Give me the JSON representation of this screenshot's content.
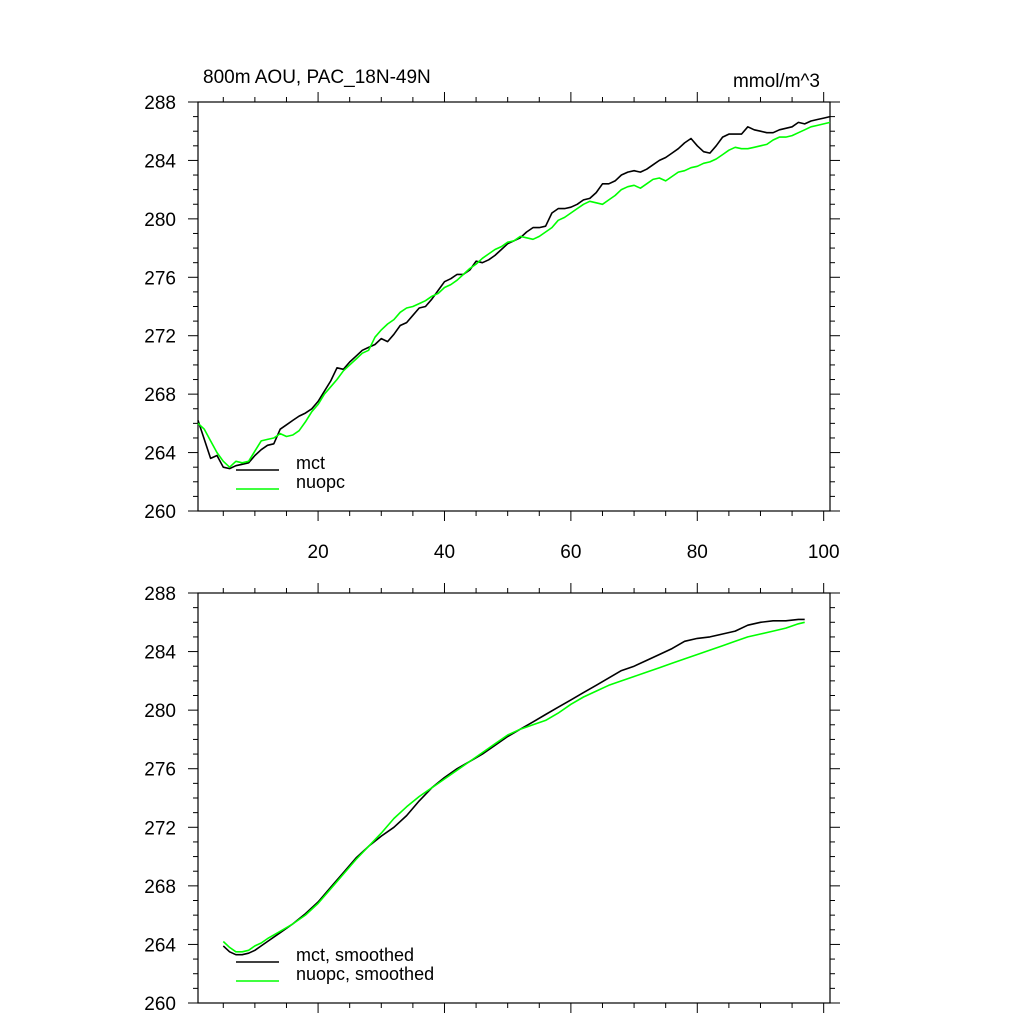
{
  "chart_data": [
    {
      "type": "line",
      "title": "800m AOU, PAC_18N-49N",
      "title_right": "mmol/m^3",
      "xlim": [
        1,
        101
      ],
      "ylim": [
        260,
        288
      ],
      "xticks": [
        20,
        40,
        60,
        80,
        100
      ],
      "yticks": [
        260,
        264,
        268,
        272,
        276,
        280,
        284,
        288
      ],
      "legend_position": "bottom-left",
      "series": [
        {
          "name": "mct",
          "color": "#000000",
          "x": [
            1,
            2,
            3,
            4,
            5,
            6,
            7,
            8,
            9,
            10,
            11,
            12,
            13,
            14,
            15,
            16,
            17,
            18,
            19,
            20,
            21,
            22,
            23,
            24,
            25,
            26,
            27,
            28,
            29,
            30,
            31,
            32,
            33,
            34,
            35,
            36,
            37,
            38,
            39,
            40,
            41,
            42,
            43,
            44,
            45,
            46,
            47,
            48,
            49,
            50,
            51,
            52,
            53,
            54,
            55,
            56,
            57,
            58,
            59,
            60,
            61,
            62,
            63,
            64,
            65,
            66,
            67,
            68,
            69,
            70,
            71,
            72,
            73,
            74,
            75,
            76,
            77,
            78,
            79,
            80,
            81,
            82,
            83,
            84,
            85,
            86,
            87,
            88,
            89,
            90,
            91,
            92,
            93,
            94,
            95,
            96,
            97,
            98,
            99,
            100,
            101
          ],
          "values": [
            266.2,
            264.9,
            263.6,
            263.8,
            263.0,
            262.9,
            263.1,
            263.2,
            263.3,
            263.8,
            264.2,
            264.5,
            264.6,
            265.6,
            265.9,
            266.2,
            266.5,
            266.7,
            267.0,
            267.5,
            268.2,
            268.9,
            269.8,
            269.7,
            270.2,
            270.6,
            271.0,
            271.2,
            271.4,
            271.8,
            271.6,
            272.1,
            272.7,
            272.9,
            273.4,
            273.9,
            274.0,
            274.5,
            275.1,
            275.7,
            275.9,
            276.2,
            276.2,
            276.5,
            277.1,
            277.0,
            277.2,
            277.5,
            277.9,
            278.3,
            278.5,
            278.7,
            279.1,
            279.4,
            279.4,
            279.5,
            280.4,
            280.7,
            280.7,
            280.8,
            281.0,
            281.3,
            281.4,
            281.8,
            282.4,
            282.4,
            282.6,
            283.0,
            283.2,
            283.3,
            283.2,
            283.4,
            283.7,
            284.0,
            284.2,
            284.5,
            284.8,
            285.2,
            285.5,
            285.0,
            284.6,
            284.5,
            285.0,
            285.6,
            285.8,
            285.8,
            285.8,
            286.3,
            286.1,
            286.0,
            285.9,
            285.9,
            286.1,
            286.2,
            286.3,
            286.6,
            286.5,
            286.7,
            286.8,
            286.9,
            287.0
          ]
        },
        {
          "name": "nuopc",
          "color": "#00ff00",
          "x": [
            1,
            2,
            3,
            4,
            5,
            6,
            7,
            8,
            9,
            10,
            11,
            12,
            13,
            14,
            15,
            16,
            17,
            18,
            19,
            20,
            21,
            22,
            23,
            24,
            25,
            26,
            27,
            28,
            29,
            30,
            31,
            32,
            33,
            34,
            35,
            36,
            37,
            38,
            39,
            40,
            41,
            42,
            43,
            44,
            45,
            46,
            47,
            48,
            49,
            50,
            51,
            52,
            53,
            54,
            55,
            56,
            57,
            58,
            59,
            60,
            61,
            62,
            63,
            64,
            65,
            66,
            67,
            68,
            69,
            70,
            71,
            72,
            73,
            74,
            75,
            76,
            77,
            78,
            79,
            80,
            81,
            82,
            83,
            84,
            85,
            86,
            87,
            88,
            89,
            90,
            91,
            92,
            93,
            94,
            95,
            96,
            97,
            98,
            99,
            100,
            101
          ],
          "values": [
            266.0,
            265.6,
            264.8,
            264.0,
            263.4,
            263.0,
            263.4,
            263.3,
            263.4,
            264.1,
            264.8,
            264.9,
            265.0,
            265.3,
            265.1,
            265.2,
            265.5,
            266.1,
            266.8,
            267.3,
            268.0,
            268.5,
            269.0,
            269.6,
            270.0,
            270.4,
            270.8,
            271.0,
            271.9,
            272.4,
            272.8,
            273.1,
            273.6,
            273.9,
            274.0,
            274.2,
            274.4,
            274.7,
            274.9,
            275.3,
            275.5,
            275.8,
            276.2,
            276.6,
            276.9,
            277.3,
            277.6,
            277.9,
            278.1,
            278.4,
            278.5,
            278.8,
            278.7,
            278.6,
            278.8,
            279.1,
            279.4,
            279.9,
            280.1,
            280.4,
            280.7,
            281.0,
            281.2,
            281.1,
            281.0,
            281.3,
            281.6,
            282.0,
            282.2,
            282.3,
            282.1,
            282.4,
            282.7,
            282.8,
            282.6,
            282.9,
            283.2,
            283.3,
            283.5,
            283.6,
            283.8,
            283.9,
            284.1,
            284.4,
            284.7,
            284.9,
            284.8,
            284.8,
            284.9,
            285.0,
            285.1,
            285.4,
            285.6,
            285.6,
            285.7,
            285.9,
            286.1,
            286.3,
            286.4,
            286.5,
            286.6
          ]
        }
      ]
    },
    {
      "type": "line",
      "title": "",
      "xlim": [
        1,
        101
      ],
      "ylim": [
        260,
        288
      ],
      "xticks": [
        20,
        40,
        60,
        80,
        100
      ],
      "yticks": [
        260,
        264,
        268,
        272,
        276,
        280,
        284,
        288
      ],
      "legend_position": "bottom-left",
      "series": [
        {
          "name": "mct, smoothed",
          "color": "#000000",
          "x": [
            5,
            6,
            7,
            8,
            9,
            10,
            11,
            12,
            14,
            16,
            18,
            20,
            22,
            24,
            26,
            28,
            30,
            32,
            34,
            36,
            38,
            40,
            42,
            44,
            46,
            48,
            50,
            52,
            54,
            56,
            58,
            60,
            62,
            64,
            66,
            68,
            70,
            72,
            74,
            76,
            78,
            80,
            82,
            84,
            86,
            88,
            90,
            92,
            94,
            96,
            97
          ],
          "values": [
            263.9,
            263.5,
            263.3,
            263.3,
            263.4,
            263.6,
            263.9,
            264.2,
            264.8,
            265.4,
            266.1,
            266.9,
            267.9,
            268.9,
            269.9,
            270.7,
            271.4,
            272.0,
            272.8,
            273.8,
            274.7,
            275.4,
            276.0,
            276.5,
            277.0,
            277.6,
            278.2,
            278.7,
            279.2,
            279.7,
            280.2,
            280.7,
            281.2,
            281.7,
            282.2,
            282.7,
            283.0,
            283.4,
            283.8,
            284.2,
            284.7,
            284.9,
            285.0,
            285.2,
            285.4,
            285.8,
            286.0,
            286.1,
            286.1,
            286.2,
            286.2
          ]
        },
        {
          "name": "nuopc, smoothed",
          "color": "#00ff00",
          "x": [
            5,
            6,
            7,
            8,
            9,
            10,
            11,
            12,
            14,
            16,
            18,
            20,
            22,
            24,
            26,
            28,
            30,
            32,
            34,
            36,
            38,
            40,
            42,
            44,
            46,
            48,
            50,
            52,
            54,
            56,
            58,
            60,
            62,
            64,
            66,
            68,
            70,
            72,
            74,
            76,
            78,
            80,
            82,
            84,
            86,
            88,
            90,
            92,
            94,
            96,
            97
          ],
          "values": [
            264.2,
            263.8,
            263.5,
            263.5,
            263.6,
            263.9,
            264.1,
            264.4,
            264.9,
            265.4,
            266.0,
            266.8,
            267.8,
            268.8,
            269.8,
            270.7,
            271.6,
            272.6,
            273.4,
            274.1,
            274.7,
            275.3,
            275.9,
            276.5,
            277.1,
            277.7,
            278.3,
            278.7,
            279.0,
            279.3,
            279.8,
            280.4,
            280.9,
            281.3,
            281.7,
            282.0,
            282.3,
            282.6,
            282.9,
            283.2,
            283.5,
            283.8,
            284.1,
            284.4,
            284.7,
            285.0,
            285.2,
            285.4,
            285.6,
            285.9,
            286.0
          ]
        }
      ]
    }
  ]
}
